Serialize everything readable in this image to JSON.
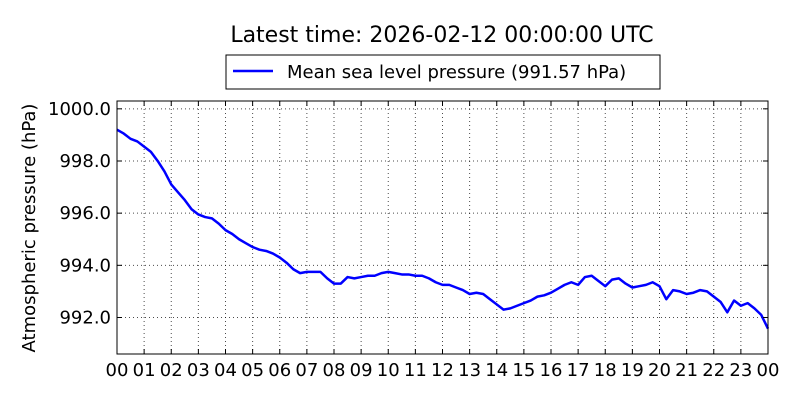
{
  "chart_data": {
    "type": "line",
    "title": "Latest time: 2026-02-12 00:00:00 UTC",
    "xlabel": "",
    "ylabel": "Atmospheric pressure (hPa)",
    "xlim": [
      0,
      24
    ],
    "ylim": [
      990.6,
      1000.3
    ],
    "grid": true,
    "legend_position": "top-center",
    "x_tick_labels": [
      "00",
      "01",
      "02",
      "03",
      "04",
      "05",
      "06",
      "07",
      "08",
      "09",
      "10",
      "11",
      "12",
      "13",
      "14",
      "15",
      "16",
      "17",
      "18",
      "19",
      "20",
      "21",
      "22",
      "23",
      "00"
    ],
    "y_ticks": [
      992.0,
      994.0,
      996.0,
      998.0,
      1000.0
    ],
    "y_tick_labels": [
      "992.0",
      "994.0",
      "996.0",
      "998.0",
      "1000.0"
    ],
    "series": [
      {
        "name": "Mean sea level pressure (991.57 hPa)",
        "color": "#0000ff",
        "x": [
          0,
          0.25,
          0.5,
          0.75,
          1.0,
          1.25,
          1.5,
          1.75,
          2.0,
          2.25,
          2.5,
          2.75,
          3.0,
          3.25,
          3.5,
          3.75,
          4.0,
          4.25,
          4.5,
          4.75,
          5.0,
          5.25,
          5.5,
          5.75,
          6.0,
          6.25,
          6.5,
          6.75,
          7.0,
          7.25,
          7.5,
          7.75,
          8.0,
          8.25,
          8.5,
          8.75,
          9.0,
          9.25,
          9.5,
          9.75,
          10.0,
          10.25,
          10.5,
          10.75,
          11.0,
          11.25,
          11.5,
          11.75,
          12.0,
          12.25,
          12.5,
          12.75,
          13.0,
          13.25,
          13.5,
          13.75,
          14.0,
          14.25,
          14.5,
          14.75,
          15.0,
          15.25,
          15.5,
          15.75,
          16.0,
          16.25,
          16.5,
          16.75,
          17.0,
          17.25,
          17.5,
          17.75,
          18.0,
          18.25,
          18.5,
          18.75,
          19.0,
          19.25,
          19.5,
          19.75,
          20.0,
          20.25,
          20.5,
          20.75,
          21.0,
          21.25,
          21.5,
          21.75,
          22.0,
          22.25,
          22.5,
          22.75,
          23.0,
          23.25,
          23.5,
          23.75,
          24.0
        ],
        "values": [
          999.2,
          999.05,
          998.85,
          998.75,
          998.55,
          998.35,
          998.0,
          997.6,
          997.1,
          996.8,
          996.5,
          996.15,
          995.95,
          995.85,
          995.8,
          995.6,
          995.35,
          995.2,
          995.0,
          994.85,
          994.7,
          994.6,
          994.55,
          994.45,
          994.3,
          994.1,
          993.85,
          993.7,
          993.75,
          993.75,
          993.75,
          993.5,
          993.3,
          993.3,
          993.55,
          993.5,
          993.55,
          993.6,
          993.6,
          993.7,
          993.75,
          993.7,
          993.65,
          993.65,
          993.6,
          993.6,
          993.5,
          993.35,
          993.25,
          993.25,
          993.15,
          993.05,
          992.9,
          992.95,
          992.9,
          992.7,
          992.5,
          992.3,
          992.35,
          992.45,
          992.55,
          992.65,
          992.8,
          992.85,
          992.95,
          993.1,
          993.25,
          993.35,
          993.25,
          993.55,
          993.6,
          993.4,
          993.2,
          993.45,
          993.5,
          993.3,
          993.15,
          993.2,
          993.25,
          993.35,
          993.2,
          992.7,
          993.05,
          993.0,
          992.9,
          992.95,
          993.05,
          993.0,
          992.8,
          992.6,
          992.2,
          992.65,
          992.45,
          992.55,
          992.35,
          992.1,
          991.57
        ]
      }
    ]
  }
}
